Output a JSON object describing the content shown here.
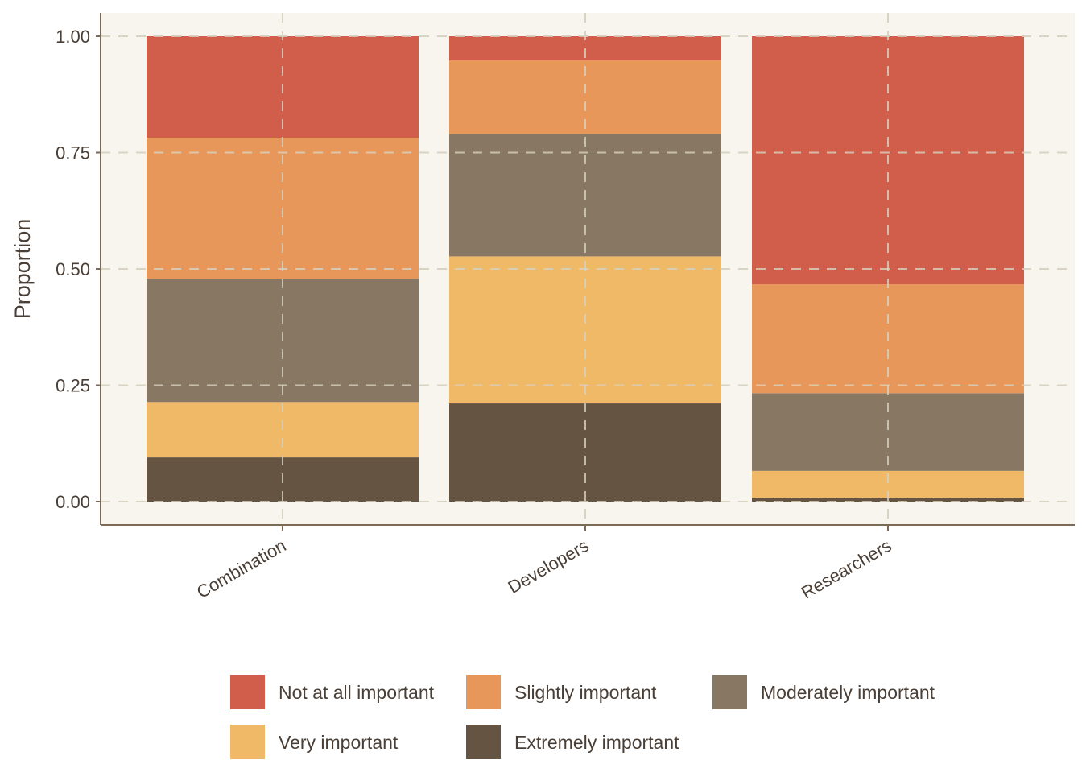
{
  "chart_data": {
    "type": "bar",
    "stacked": true,
    "normalized": true,
    "categories": [
      "Combination",
      "Developers",
      "Researchers"
    ],
    "ylabel": "Proportion",
    "xlabel": "",
    "ylim": [
      0,
      1
    ],
    "yticks": [
      0.0,
      0.25,
      0.5,
      0.75,
      1.0
    ],
    "ytick_labels": [
      "0.00",
      "0.25",
      "0.50",
      "0.75",
      "1.00"
    ],
    "grid": "dashed",
    "legend_position": "bottom",
    "x_tick_label_rotation_deg": -30,
    "series": [
      {
        "name": "Extremely important",
        "color": "#665442",
        "values": [
          0.095,
          0.211,
          0.008
        ]
      },
      {
        "name": "Very important",
        "color": "#EFB968",
        "values": [
          0.119,
          0.316,
          0.058
        ]
      },
      {
        "name": "Moderately important",
        "color": "#887863",
        "values": [
          0.265,
          0.263,
          0.167
        ]
      },
      {
        "name": "Slightly important",
        "color": "#E8975B",
        "values": [
          0.303,
          0.158,
          0.234
        ]
      },
      {
        "name": "Not at all important",
        "color": "#D05E4B",
        "values": [
          0.218,
          0.052,
          0.533
        ]
      }
    ],
    "legend_order": [
      "Not at all important",
      "Slightly important",
      "Moderately important",
      "Very important",
      "Extremely important"
    ],
    "colors": {
      "panel_background": "#F8F5EE",
      "grid": "#D9D3C3",
      "axis": "#7A6A57",
      "text": "#4A3F36"
    }
  }
}
